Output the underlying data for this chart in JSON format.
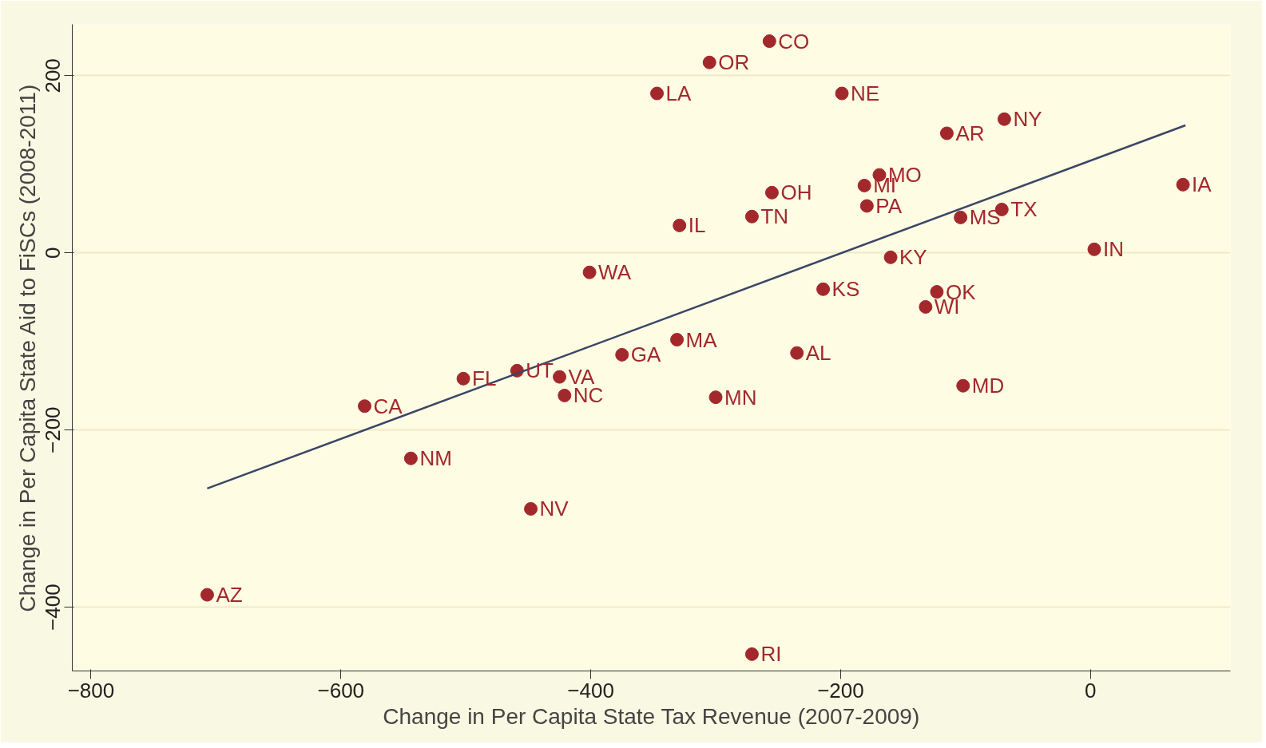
{
  "chart_data": {
    "type": "scatter",
    "xlabel": "Change in Per Capita State Tax Revenue (2007-2009)",
    "ylabel": "Change in Per Capita State Aid to FiSCs (2008-2011)",
    "xlim": [
      -815,
      112
    ],
    "ylim": [
      -472,
      258
    ],
    "xticks": [
      -800,
      -600,
      -400,
      -200,
      0
    ],
    "yticks": [
      -400,
      -200,
      0,
      200
    ],
    "grid": "y",
    "marker": "circle",
    "series": [
      {
        "color": "#a3282c",
        "x": [
          -257,
          -305,
          -347,
          -199,
          -69,
          -115,
          -169,
          -181,
          -255,
          -179,
          -271,
          -329,
          -104,
          -71,
          74,
          3,
          -160,
          -401,
          -214,
          -123,
          -132,
          -331,
          -235,
          -375,
          -459,
          -502,
          -425,
          -421,
          -102,
          -300,
          -581,
          -544,
          -448,
          -707,
          -271
        ],
        "values": [
          239,
          215,
          180,
          180,
          151,
          135,
          88,
          76,
          68,
          53,
          41,
          31,
          40,
          49,
          77,
          4,
          -5,
          -22,
          -41,
          -44,
          -61,
          -98,
          -113,
          -115,
          -133,
          -142,
          -140,
          -161,
          -150,
          -163,
          -173,
          -232,
          -289,
          -386,
          -453
        ]
      },
      {
        "type": "line",
        "marker": "none",
        "color": "#3b4566",
        "x": [
          -707,
          76
        ],
        "values": [
          -266,
          144
        ]
      }
    ],
    "annotations": [
      {
        "text": "CO",
        "x": -257,
        "y": 239
      },
      {
        "text": "OR",
        "x": -305,
        "y": 215
      },
      {
        "text": "LA",
        "x": -347,
        "y": 180
      },
      {
        "text": "NE",
        "x": -199,
        "y": 180
      },
      {
        "text": "NY",
        "x": -69,
        "y": 151
      },
      {
        "text": "AR",
        "x": -115,
        "y": 135
      },
      {
        "text": "MO",
        "x": -169,
        "y": 88
      },
      {
        "text": "MI",
        "x": -181,
        "y": 76
      },
      {
        "text": "OH",
        "x": -255,
        "y": 68
      },
      {
        "text": "PA",
        "x": -179,
        "y": 53
      },
      {
        "text": "TN",
        "x": -271,
        "y": 41
      },
      {
        "text": "IL",
        "x": -329,
        "y": 31
      },
      {
        "text": "MS",
        "x": -104,
        "y": 40
      },
      {
        "text": "TX",
        "x": -71,
        "y": 49
      },
      {
        "text": "IA",
        "x": 74,
        "y": 77
      },
      {
        "text": "IN",
        "x": 3,
        "y": 4
      },
      {
        "text": "KY",
        "x": -160,
        "y": -5
      },
      {
        "text": "WA",
        "x": -401,
        "y": -22
      },
      {
        "text": "KS",
        "x": -214,
        "y": -41
      },
      {
        "text": "OK",
        "x": -123,
        "y": -44
      },
      {
        "text": "WI",
        "x": -132,
        "y": -61
      },
      {
        "text": "MA",
        "x": -331,
        "y": -98
      },
      {
        "text": "AL",
        "x": -235,
        "y": -113
      },
      {
        "text": "GA",
        "x": -375,
        "y": -115
      },
      {
        "text": "UT",
        "x": -459,
        "y": -133
      },
      {
        "text": "FL",
        "x": -502,
        "y": -142
      },
      {
        "text": "VA",
        "x": -425,
        "y": -140
      },
      {
        "text": "NC",
        "x": -421,
        "y": -161
      },
      {
        "text": "MD",
        "x": -102,
        "y": -150
      },
      {
        "text": "MN",
        "x": -300,
        "y": -163
      },
      {
        "text": "CA",
        "x": -581,
        "y": -173
      },
      {
        "text": "NM",
        "x": -544,
        "y": -232
      },
      {
        "text": "NV",
        "x": -448,
        "y": -289
      },
      {
        "text": "AZ",
        "x": -707,
        "y": -386
      },
      {
        "text": "RI",
        "x": -271,
        "y": -453
      }
    ]
  }
}
